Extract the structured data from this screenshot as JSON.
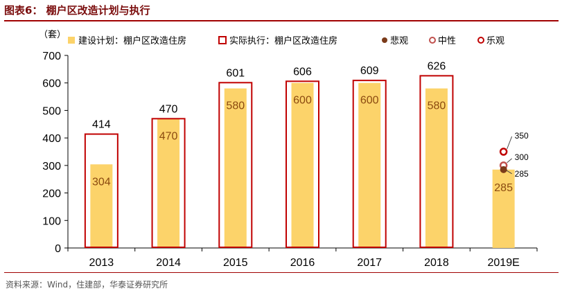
{
  "figure": {
    "title": "图表6：   棚户区改造计划与执行",
    "source": "资料来源：Wind，住建部，华泰证券研究所"
  },
  "colors": {
    "planned_fill": "#fcd36a",
    "actual_outline": "#c00000",
    "label_planned": "#8b4a10",
    "pessimistic": "#7b3b1a",
    "neutral": "#c0504d",
    "optimistic": "#c00000",
    "title": "#7a0c0c"
  },
  "chart_data": {
    "type": "bar",
    "unit_label": "（套）",
    "categories": [
      "2013",
      "2014",
      "2015",
      "2016",
      "2017",
      "2018",
      "2019E"
    ],
    "ylim": [
      0,
      700
    ],
    "yticks": [
      0,
      100,
      200,
      300,
      400,
      500,
      600,
      700
    ],
    "grid": false,
    "legend_position": "top",
    "series": [
      {
        "name": "建设计划：棚户区改造住房",
        "kind": "filled-bar",
        "values": [
          304,
          470,
          580,
          600,
          600,
          580,
          285
        ]
      },
      {
        "name": "实际执行：棚户区改造住房",
        "kind": "outline-bar",
        "values": [
          414,
          470,
          601,
          606,
          609,
          626,
          null
        ]
      }
    ],
    "scenarios_2019E": [
      {
        "name": "悲观",
        "value": 285,
        "label": "285"
      },
      {
        "name": "中性",
        "value": 300,
        "label": "300"
      },
      {
        "name": "乐观",
        "value": 350,
        "label": "350"
      }
    ]
  }
}
